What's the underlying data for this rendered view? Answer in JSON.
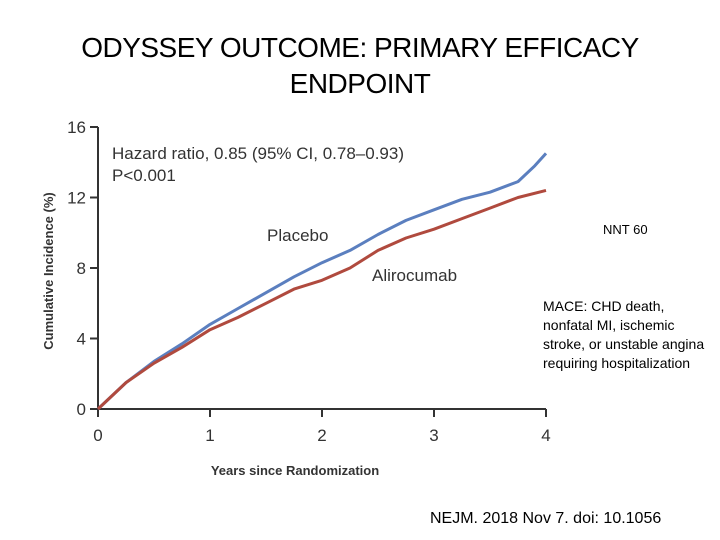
{
  "slide": {
    "title_line1": "ODYSSEY OUTCOME: PRIMARY EFFICACY",
    "title_line2": "ENDPOINT",
    "nnt": "NNT 60",
    "endpoint_definition": "MACE: CHD death, nonfatal MI, ischemic stroke, or unstable angina requiring hospitalization",
    "citation": "NEJM. 2018 Nov 7. doi: 10.1056"
  },
  "chart_data": {
    "type": "line",
    "xlabel": "Years since Randomization",
    "ylabel": "Cumulative Incidence (%)",
    "xlim": [
      0,
      4
    ],
    "ylim": [
      0,
      16
    ],
    "x_ticks": [
      "0",
      "1",
      "2",
      "3",
      "4"
    ],
    "y_ticks": [
      "0",
      "4",
      "8",
      "12",
      "16"
    ],
    "grid": false,
    "annotation_line1": "Hazard ratio, 0.85 (95% CI, 0.78–0.93)",
    "annotation_line2": "P<0.001",
    "series": [
      {
        "name": "Placebo",
        "color": "#5b7fbf",
        "x": [
          0,
          0.25,
          0.5,
          0.75,
          1.0,
          1.25,
          1.5,
          1.75,
          2.0,
          2.25,
          2.5,
          2.75,
          3.0,
          3.25,
          3.5,
          3.75,
          3.9,
          4.0
        ],
        "y": [
          0,
          1.5,
          2.7,
          3.7,
          4.8,
          5.7,
          6.6,
          7.5,
          8.3,
          9.0,
          9.9,
          10.7,
          11.3,
          11.9,
          12.3,
          12.9,
          13.8,
          14.5
        ]
      },
      {
        "name": "Alirocumab",
        "color": "#b04a3e",
        "x": [
          0,
          0.25,
          0.5,
          0.75,
          1.0,
          1.25,
          1.5,
          1.75,
          2.0,
          2.25,
          2.5,
          2.75,
          3.0,
          3.25,
          3.5,
          3.75,
          4.0
        ],
        "y": [
          0,
          1.5,
          2.6,
          3.5,
          4.5,
          5.2,
          6.0,
          6.8,
          7.3,
          8.0,
          9.0,
          9.7,
          10.2,
          10.8,
          11.4,
          12.0,
          12.4
        ]
      }
    ]
  }
}
